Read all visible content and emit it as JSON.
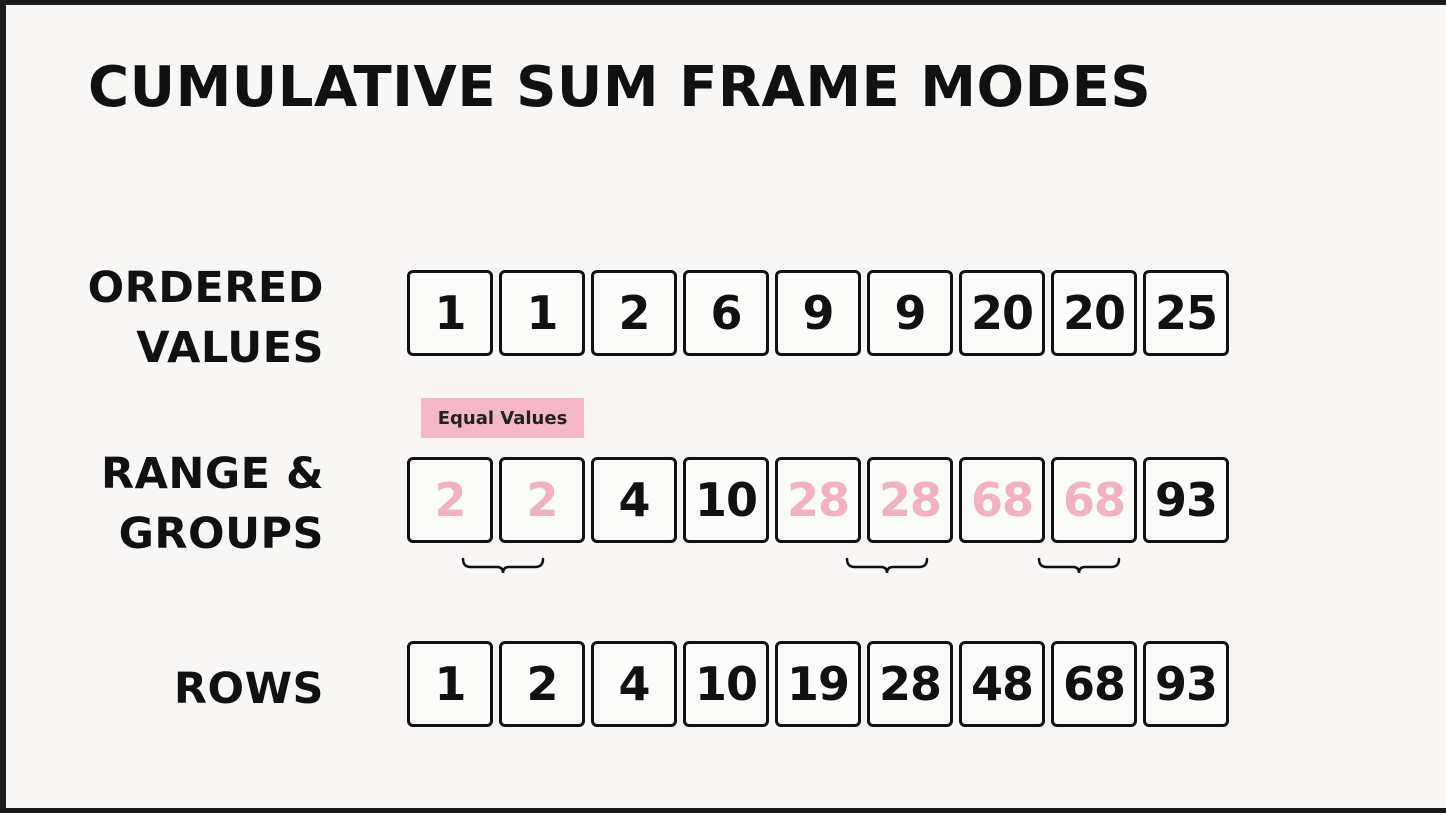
{
  "title": "CUMULATIVE SUM FRAME MODES",
  "rows": [
    {
      "label_lines": [
        "ORDERED",
        "VALUES"
      ],
      "values": [
        "1",
        "1",
        "2",
        "6",
        "9",
        "9",
        "20",
        "20",
        "25"
      ],
      "highlighted": [
        false,
        false,
        false,
        false,
        false,
        false,
        false,
        false,
        false
      ]
    },
    {
      "label_lines": [
        "RANGE &",
        "GROUPS"
      ],
      "values": [
        "2",
        "2",
        "4",
        "10",
        "28",
        "28",
        "68",
        "68",
        "93"
      ],
      "highlighted": [
        true,
        true,
        false,
        false,
        true,
        true,
        true,
        true,
        false
      ]
    },
    {
      "label_lines": [
        "ROWS"
      ],
      "values": [
        "1",
        "2",
        "4",
        "10",
        "19",
        "28",
        "48",
        "68",
        "93"
      ],
      "highlighted": [
        false,
        false,
        false,
        false,
        false,
        false,
        false,
        false,
        false
      ]
    }
  ],
  "annotation": "Equal Values",
  "colors": {
    "highlight_text": "#f2b2c1",
    "tag_background": "#f4b7c5",
    "text": "#111111"
  }
}
